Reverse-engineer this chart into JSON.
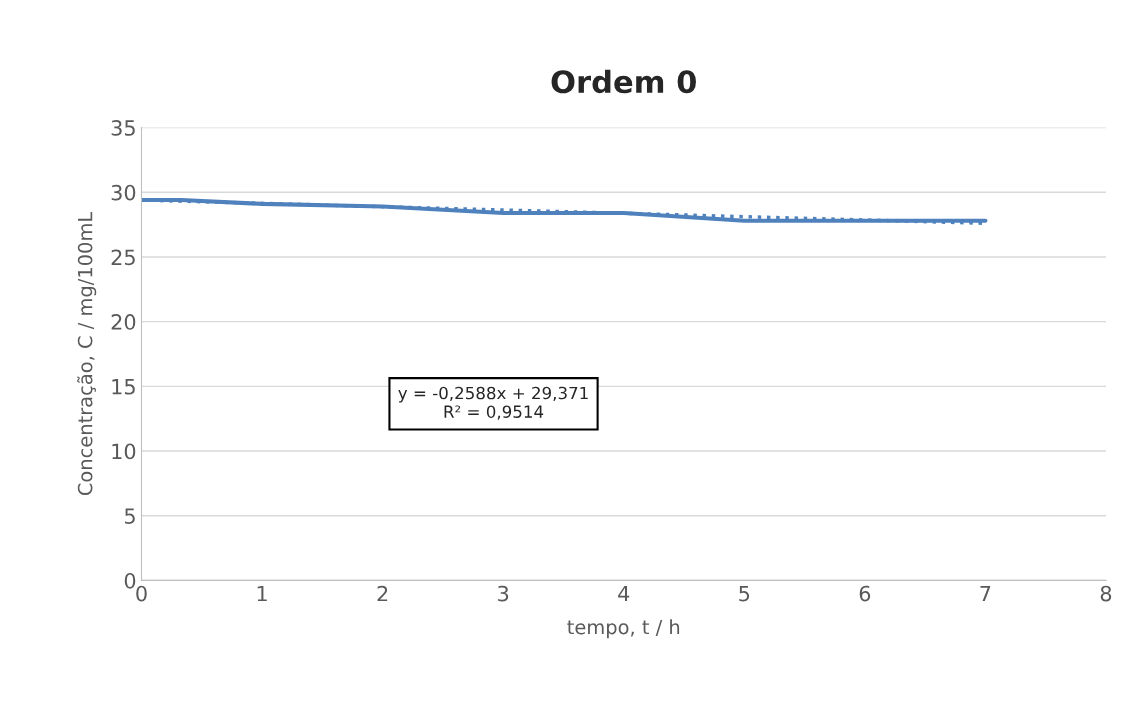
{
  "chart_data": {
    "type": "line",
    "title": "Ordem 0",
    "xlabel": "tempo, t / h",
    "ylabel": "Concentração, C / mg/100mL",
    "xlim": [
      0,
      8
    ],
    "xticks": [
      0,
      1,
      2,
      3,
      4,
      5,
      6,
      7,
      8
    ],
    "ylim": [
      0,
      35
    ],
    "yticks": [
      0,
      5,
      10,
      15,
      20,
      25,
      30,
      35
    ],
    "grid": "y",
    "legend": false,
    "series": [
      {
        "color": "#4f81bd",
        "x": [
          0,
          0.33,
          1,
          2,
          3,
          4,
          5,
          6,
          7
        ],
        "values": [
          29.4,
          29.4,
          29.1,
          28.9,
          28.4,
          28.4,
          27.8,
          27.8,
          27.8
        ],
        "line_style": "solid"
      },
      {
        "type": "line",
        "color": "#4f81bd",
        "x": [
          0,
          7
        ],
        "values": [
          29.4,
          27.6
        ],
        "line_style": "dotted"
      }
    ],
    "annotations": [
      "y = -0,2588x + 29,371\nR² = 0,9514"
    ]
  }
}
